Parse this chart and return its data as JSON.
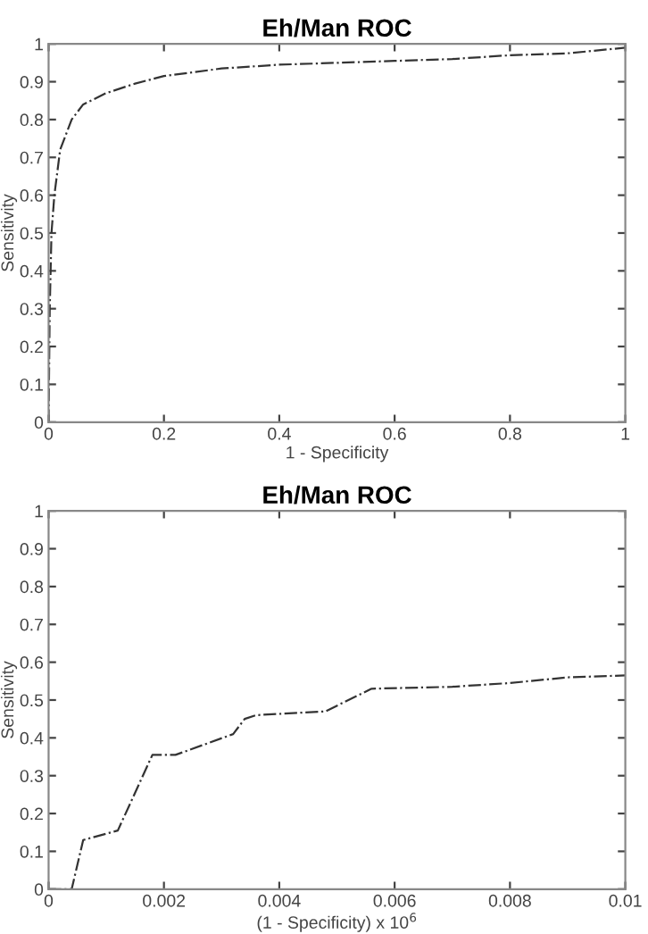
{
  "chart_data": [
    {
      "type": "line",
      "title": "Eh/Man ROC",
      "xlabel": "1 - Specificity",
      "ylabel": "Sensitivity",
      "xlim": [
        0,
        1
      ],
      "ylim": [
        0,
        1
      ],
      "xticks": [
        0,
        0.2,
        0.4,
        0.6,
        0.8,
        1
      ],
      "yticks": [
        0,
        0.1,
        0.2,
        0.3,
        0.4,
        0.5,
        0.6,
        0.7,
        0.8,
        0.9,
        1
      ],
      "grid": false,
      "legend": false,
      "marker": "none",
      "line_style": "dashdot",
      "series": [
        {
          "color": "#333333",
          "x": [
            0,
            0.002,
            0.005,
            0.01,
            0.02,
            0.04,
            0.06,
            0.1,
            0.15,
            0.2,
            0.3,
            0.4,
            0.5,
            0.6,
            0.7,
            0.8,
            0.9,
            1
          ],
          "values": [
            0,
            0.3,
            0.5,
            0.6,
            0.72,
            0.8,
            0.84,
            0.87,
            0.895,
            0.915,
            0.935,
            0.945,
            0.95,
            0.955,
            0.96,
            0.97,
            0.975,
            0.99
          ]
        }
      ]
    },
    {
      "type": "line",
      "title": "Eh/Man ROC",
      "xlabel": "(1 - Specificity) x 10$^{6}$",
      "ylabel": "Sensitivity",
      "xlim": [
        0,
        0.01
      ],
      "ylim": [
        0,
        1
      ],
      "xticks": [
        0,
        0.002,
        0.004,
        0.006,
        0.008,
        0.01
      ],
      "yticks": [
        0,
        0.1,
        0.2,
        0.3,
        0.4,
        0.5,
        0.6,
        0.7,
        0.8,
        0.9,
        1
      ],
      "grid": false,
      "legend": false,
      "marker": "none",
      "line_style": "dashdot",
      "series": [
        {
          "color": "#333333",
          "x": [
            0,
            0.0004,
            0.0006,
            0.0012,
            0.0018,
            0.0022,
            0.0032,
            0.0034,
            0.0036,
            0.0048,
            0.0056,
            0.007,
            0.008,
            0.009,
            0.01
          ],
          "values": [
            0,
            0,
            0.13,
            0.155,
            0.355,
            0.355,
            0.41,
            0.45,
            0.46,
            0.47,
            0.53,
            0.535,
            0.545,
            0.56,
            0.565
          ]
        }
      ]
    }
  ]
}
